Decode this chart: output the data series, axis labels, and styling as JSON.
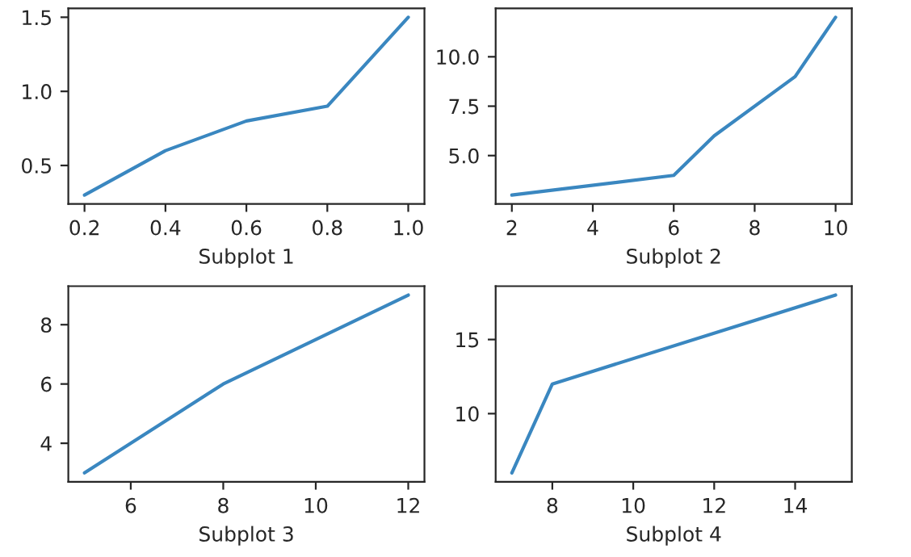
{
  "chart_data": [
    {
      "type": "line",
      "xlabel": "Subplot 1",
      "x": [
        0.2,
        0.4,
        0.6,
        0.8,
        1.0
      ],
      "series": [
        {
          "color": "#3a87c0",
          "values": [
            0.3,
            0.6,
            0.8,
            0.9,
            1.5
          ]
        }
      ],
      "xlim": [
        0.16,
        1.04
      ],
      "ylim": [
        0.24,
        1.56
      ],
      "xticks": [
        0.2,
        0.4,
        0.6,
        0.8,
        {
          "value": 1.0,
          "label": "1.0"
        }
      ],
      "yticks": [
        0.5,
        {
          "value": 1.0,
          "label": "1.0"
        },
        1.5
      ],
      "grid": false,
      "marker": "none",
      "line_style": "solid"
    },
    {
      "type": "line",
      "xlabel": "Subplot 2",
      "x": [
        2,
        6,
        7,
        9,
        10
      ],
      "series": [
        {
          "color": "#3a87c0",
          "values": [
            3,
            4,
            6,
            9,
            12
          ]
        }
      ],
      "xlim": [
        1.6,
        10.4
      ],
      "ylim": [
        2.55,
        12.45
      ],
      "xticks": [
        2,
        4,
        6,
        8,
        10
      ],
      "yticks": [
        {
          "value": 5,
          "label": "5.0"
        },
        7.5,
        {
          "value": 10,
          "label": "10.0"
        }
      ],
      "grid": false,
      "marker": "none",
      "line_style": "solid"
    },
    {
      "type": "line",
      "xlabel": "Subplot 3",
      "x": [
        5,
        8,
        12
      ],
      "series": [
        {
          "color": "#3a87c0",
          "values": [
            3,
            6,
            9
          ]
        }
      ],
      "xlim": [
        4.65,
        12.35
      ],
      "ylim": [
        2.7,
        9.3
      ],
      "xticks": [
        6,
        8,
        10,
        12
      ],
      "yticks": [
        4,
        6,
        8
      ],
      "grid": false,
      "marker": "none",
      "line_style": "solid"
    },
    {
      "type": "line",
      "xlabel": "Subplot 4",
      "x": [
        7,
        8,
        15
      ],
      "series": [
        {
          "color": "#3a87c0",
          "values": [
            6,
            12,
            18
          ]
        }
      ],
      "xlim": [
        6.6,
        15.4
      ],
      "ylim": [
        5.4,
        18.6
      ],
      "xticks": [
        8,
        10,
        12,
        14
      ],
      "yticks": [
        10,
        15
      ],
      "grid": false,
      "marker": "none",
      "line_style": "solid"
    }
  ]
}
